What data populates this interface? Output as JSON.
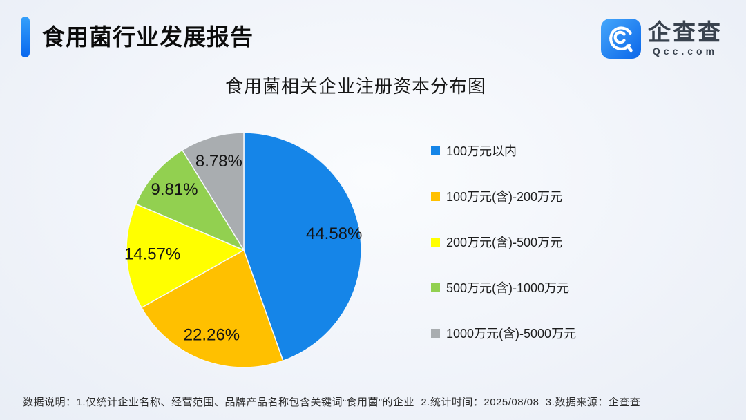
{
  "page": {
    "title": "食用菌行业发展报告",
    "logo": {
      "name": "企查查",
      "domain": "Qcc.com"
    },
    "footer": "数据说明：1.仅统计企业名称、经营范围、品牌产品名称包含关键词“食用菌”的企业  2.统计时间：2025/08/08  3.数据来源：企查查"
  },
  "chart_data": {
    "type": "pie",
    "title": "食用菌相关企业注册资本分布图",
    "categories": [
      "100万元以内",
      "100万元(含)-200万元",
      "200万元(含)-500万元",
      "500万元(含)-1000万元",
      "1000万元(含)-5000万元"
    ],
    "values": [
      44.58,
      22.26,
      14.57,
      9.81,
      8.78
    ],
    "value_labels": [
      "44.58%",
      "22.26%",
      "14.57%",
      "9.81%",
      "8.78%"
    ],
    "colors": [
      "#1585E8",
      "#FFC000",
      "#FFFF00",
      "#92D050",
      "#A9ADB0"
    ],
    "start_angle_deg": 0,
    "direction": "clockwise",
    "legend_position": "right",
    "slice_separator_color": "#f5f8fc"
  }
}
